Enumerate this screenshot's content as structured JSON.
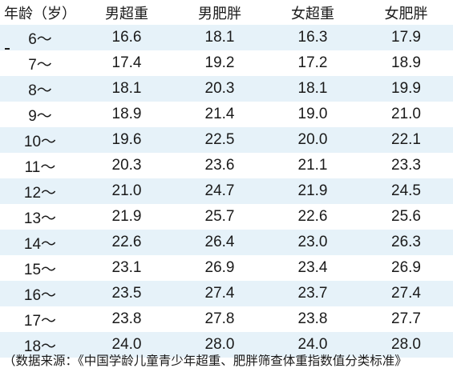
{
  "table": {
    "headers": [
      "年龄（岁）",
      "男超重",
      "男肥胖",
      "女超重",
      "女肥胖"
    ],
    "rows": [
      [
        "6～",
        "16.6",
        "18.1",
        "16.3",
        "17.9"
      ],
      [
        "7～",
        "17.4",
        "19.2",
        "17.2",
        "18.9"
      ],
      [
        "8～",
        "18.1",
        "20.3",
        "18.1",
        "19.9"
      ],
      [
        "9～",
        "18.9",
        "21.4",
        "19.0",
        "21.0"
      ],
      [
        "10～",
        "19.6",
        "22.5",
        "20.0",
        "22.1"
      ],
      [
        "11～",
        "20.3",
        "23.6",
        "21.1",
        "23.3"
      ],
      [
        "12～",
        "21.0",
        "24.7",
        "21.9",
        "24.5"
      ],
      [
        "13～",
        "21.9",
        "25.7",
        "22.6",
        "25.6"
      ],
      [
        "14～",
        "22.6",
        "26.4",
        "23.0",
        "26.3"
      ],
      [
        "15～",
        "23.1",
        "26.9",
        "23.4",
        "26.9"
      ],
      [
        "16～",
        "23.5",
        "27.4",
        "23.7",
        "27.4"
      ],
      [
        "17～",
        "23.8",
        "27.8",
        "23.8",
        "27.7"
      ],
      [
        "18～",
        "24.0",
        "28.0",
        "24.0",
        "28.0"
      ]
    ]
  },
  "footnote": "（数据来源：《中国学龄儿童青少年超重、肥胖筛查体重指数值分类标准》"
}
